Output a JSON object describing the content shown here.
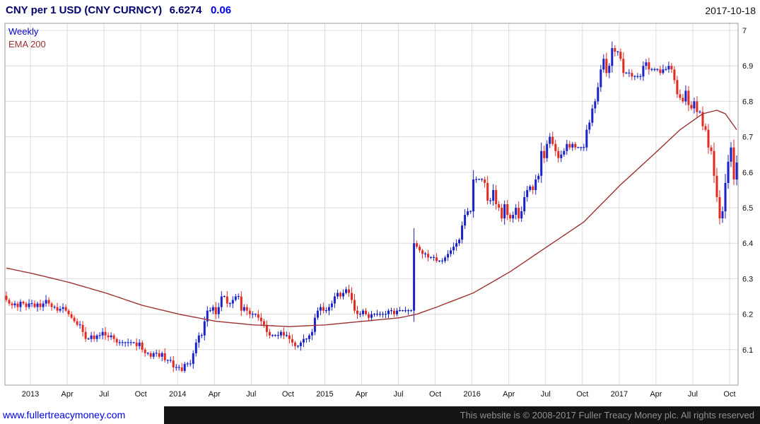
{
  "header": {
    "title": "CNY per 1 USD (CNY CURNCY)",
    "last_price": "6.6274",
    "change": "0.06",
    "date": "2017-10-18"
  },
  "legend": {
    "timeframe": "Weekly",
    "overlay": "EMA 200"
  },
  "footer": {
    "site_link": "www.fullertreacymoney.com",
    "copyright": "This website is © 2008-2017 Fuller Treacy Money plc. All rights reserved"
  },
  "colors": {
    "up": "#1a22c8",
    "down": "#e12a22",
    "ema": "#9b3232",
    "title_text": "#00006e",
    "change_text": "#0000ee",
    "link_text": "#0000e0",
    "grid": "#dcdcdc",
    "plot_border": "#9a9a9a",
    "axis_text": "#111111",
    "footer_bg": "#141414",
    "footer_text": "#909090"
  },
  "chart_data": {
    "type": "candlestick",
    "title": "CNY per 1 USD (CNY CURNCY)",
    "timeframe": "Weekly",
    "overlay": "EMA 200",
    "last_close": 6.6274,
    "change": 0.06,
    "as_of": "2017-10-18",
    "ylim": [
      6.0,
      7.02
    ],
    "grid": true,
    "y_ticks": [
      {
        "v": 7,
        "label": "7"
      },
      {
        "v": 6.9,
        "label": "6.9"
      },
      {
        "v": 6.8,
        "label": "6.8"
      },
      {
        "v": 6.7,
        "label": "6.7"
      },
      {
        "v": 6.6,
        "label": "6.6"
      },
      {
        "v": 6.5,
        "label": "6.5"
      },
      {
        "v": 6.4,
        "label": "6.4"
      },
      {
        "v": 6.3,
        "label": "6.3"
      },
      {
        "v": 6.2,
        "label": "6.2"
      },
      {
        "v": 6.1,
        "label": "6.1"
      }
    ],
    "x_ticks": [
      {
        "label": "2013",
        "week": 9
      },
      {
        "label": "Apr",
        "week": 22
      },
      {
        "label": "Jul",
        "week": 35
      },
      {
        "label": "Oct",
        "week": 48
      },
      {
        "label": "2014",
        "week": 61
      },
      {
        "label": "Apr",
        "week": 74
      },
      {
        "label": "Jul",
        "week": 87
      },
      {
        "label": "Oct",
        "week": 100
      },
      {
        "label": "2015",
        "week": 113
      },
      {
        "label": "Apr",
        "week": 126
      },
      {
        "label": "Jul",
        "week": 139
      },
      {
        "label": "Oct",
        "week": 152
      },
      {
        "label": "2016",
        "week": 165
      },
      {
        "label": "Apr",
        "week": 178
      },
      {
        "label": "Jul",
        "week": 191
      },
      {
        "label": "Oct",
        "week": 204
      },
      {
        "label": "2017",
        "week": 217
      },
      {
        "label": "Apr",
        "week": 230
      },
      {
        "label": "Jul",
        "week": 243
      },
      {
        "label": "Oct",
        "week": 256
      }
    ],
    "weekly_closes": [
      6.24,
      6.23,
      6.225,
      6.23,
      6.22,
      6.235,
      6.23,
      6.22,
      6.23,
      6.23,
      6.22,
      6.23,
      6.22,
      6.23,
      6.24,
      6.23,
      6.22,
      6.22,
      6.21,
      6.215,
      6.22,
      6.21,
      6.2,
      6.19,
      6.18,
      6.17,
      6.17,
      6.15,
      6.13,
      6.13,
      6.14,
      6.13,
      6.14,
      6.14,
      6.15,
      6.14,
      6.135,
      6.14,
      6.13,
      6.12,
      6.12,
      6.12,
      6.12,
      6.12,
      6.12,
      6.12,
      6.11,
      6.12,
      6.1,
      6.09,
      6.09,
      6.08,
      6.09,
      6.09,
      6.08,
      6.09,
      6.07,
      6.07,
      6.07,
      6.05,
      6.05,
      6.05,
      6.04,
      6.06,
      6.06,
      6.06,
      6.09,
      6.12,
      6.14,
      6.14,
      6.18,
      6.21,
      6.21,
      6.22,
      6.2,
      6.22,
      6.25,
      6.25,
      6.23,
      6.23,
      6.24,
      6.25,
      6.25,
      6.21,
      6.22,
      6.21,
      6.2,
      6.2,
      6.2,
      6.19,
      6.18,
      6.17,
      6.15,
      6.14,
      6.14,
      6.14,
      6.14,
      6.15,
      6.14,
      6.14,
      6.13,
      6.12,
      6.11,
      6.11,
      6.12,
      6.13,
      6.13,
      6.14,
      6.15,
      6.19,
      6.21,
      6.22,
      6.21,
      6.21,
      6.22,
      6.23,
      6.25,
      6.26,
      6.25,
      6.26,
      6.27,
      6.26,
      6.24,
      6.21,
      6.2,
      6.2,
      6.21,
      6.2,
      6.19,
      6.2,
      6.2,
      6.2,
      6.2,
      6.2,
      6.2,
      6.21,
      6.21,
      6.2,
      6.21,
      6.21,
      6.21,
      6.21,
      6.21,
      6.21,
      6.4,
      6.39,
      6.38,
      6.37,
      6.37,
      6.36,
      6.36,
      6.36,
      6.35,
      6.35,
      6.35,
      6.36,
      6.37,
      6.38,
      6.39,
      6.4,
      6.41,
      6.45,
      6.48,
      6.49,
      6.49,
      6.58,
      6.58,
      6.58,
      6.58,
      6.57,
      6.52,
      6.52,
      6.55,
      6.51,
      6.5,
      6.47,
      6.51,
      6.48,
      6.47,
      6.48,
      6.5,
      6.47,
      6.49,
      6.53,
      6.55,
      6.56,
      6.55,
      6.58,
      6.59,
      6.66,
      6.64,
      6.68,
      6.7,
      6.68,
      6.66,
      6.64,
      6.65,
      6.66,
      6.68,
      6.67,
      6.68,
      6.67,
      6.67,
      6.67,
      6.67,
      6.72,
      6.74,
      6.78,
      6.8,
      6.84,
      6.89,
      6.92,
      6.88,
      6.9,
      6.95,
      6.94,
      6.94,
      6.92,
      6.88,
      6.88,
      6.88,
      6.87,
      6.87,
      6.87,
      6.87,
      6.9,
      6.91,
      6.89,
      6.89,
      6.89,
      6.89,
      6.88,
      6.89,
      6.89,
      6.9,
      6.89,
      6.86,
      6.82,
      6.81,
      6.8,
      6.83,
      6.79,
      6.78,
      6.8,
      6.77,
      6.77,
      6.73,
      6.72,
      6.67,
      6.66,
      6.59,
      6.53,
      6.47,
      6.49,
      6.57,
      6.63,
      6.67,
      6.58,
      6.6274
    ],
    "ema_anchors": [
      [
        0,
        6.33
      ],
      [
        9,
        6.315
      ],
      [
        22,
        6.29
      ],
      [
        35,
        6.26
      ],
      [
        48,
        6.225
      ],
      [
        61,
        6.2
      ],
      [
        74,
        6.18
      ],
      [
        87,
        6.17
      ],
      [
        100,
        6.165
      ],
      [
        113,
        6.17
      ],
      [
        126,
        6.18
      ],
      [
        139,
        6.19
      ],
      [
        145,
        6.2
      ],
      [
        152,
        6.22
      ],
      [
        165,
        6.26
      ],
      [
        178,
        6.32
      ],
      [
        191,
        6.39
      ],
      [
        204,
        6.46
      ],
      [
        217,
        6.565
      ],
      [
        230,
        6.66
      ],
      [
        238,
        6.72
      ],
      [
        246,
        6.765
      ],
      [
        251,
        6.775
      ],
      [
        254,
        6.765
      ],
      [
        258,
        6.72
      ]
    ]
  }
}
